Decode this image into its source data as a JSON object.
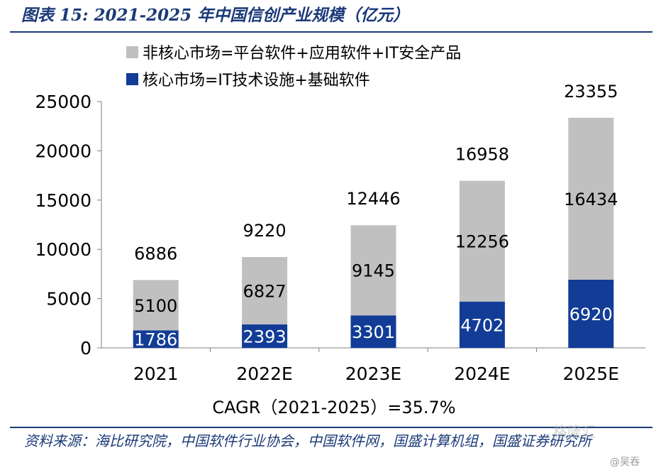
{
  "title": "图表 15:  2021-2025 年中国信创产业规模（亿元）",
  "source_note": "资料来源：海比研究院，中国软件行业协会，中国软件网，国盛计算机组，国盛证券研究所",
  "watermark": "格隆汇",
  "watermark_user": "@吴吞",
  "colors": {
    "noncore": "#c0c0c0",
    "core": "#123c96",
    "title": "#1b3a78",
    "text": "#000000",
    "white": "#ffffff"
  },
  "chart_data": {
    "type": "bar",
    "stacked": true,
    "categories": [
      "2021",
      "2022E",
      "2023E",
      "2024E",
      "2025E"
    ],
    "series": [
      {
        "name": "核心市场=IT技术设施+基础软件",
        "values": [
          1786,
          2393,
          3301,
          4702,
          6920
        ]
      },
      {
        "name": "非核心市场=平台软件+应用软件+IT安全产品",
        "values": [
          5100,
          6827,
          9145,
          12256,
          16434
        ]
      }
    ],
    "totals": [
      6886,
      9220,
      12446,
      16958,
      23355
    ],
    "ylim": [
      0,
      25000
    ],
    "yticks": [
      0,
      5000,
      10000,
      15000,
      20000,
      25000
    ],
    "grid": false,
    "legend_position": "top",
    "xlabel": "CAGR（2021-2025）=35.7%",
    "ylabel": ""
  }
}
